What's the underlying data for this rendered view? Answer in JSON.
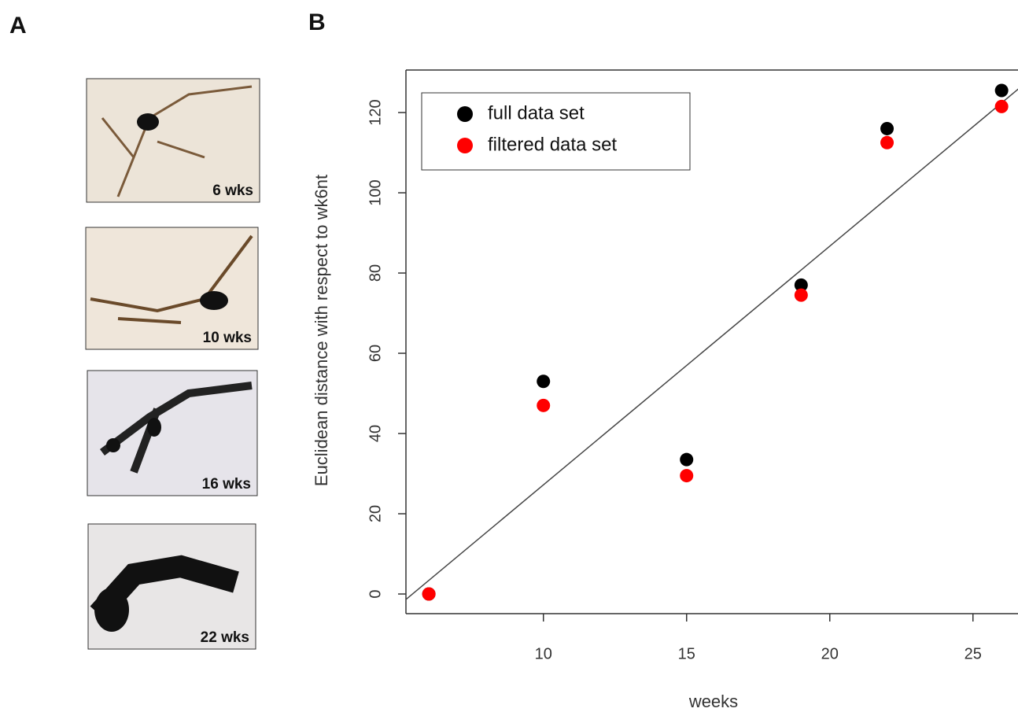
{
  "panel_labels": [
    "A",
    "B"
  ],
  "panel_a": {
    "images": [
      {
        "label": "6 wks"
      },
      {
        "label": "10 wks"
      },
      {
        "label": "16 wks"
      },
      {
        "label": "22 wks"
      }
    ]
  },
  "chart_data": {
    "type": "scatter",
    "x_label": "weeks",
    "y_label": "Euclidean distance with respect to wk6nt",
    "x": [
      6,
      10,
      15,
      19,
      22,
      26
    ],
    "series": [
      {
        "name": "full data set",
        "color": "#000000",
        "values": [
          0,
          53,
          33.5,
          77,
          116,
          125.5
        ]
      },
      {
        "name": "filtered data set",
        "color": "#ff0000",
        "values": [
          0,
          47,
          29.5,
          74.5,
          112.5,
          121.5
        ]
      }
    ],
    "fit": {
      "slope": 5.95,
      "intercept": -32.3,
      "color": "#444444"
    },
    "xlim": [
      5.2,
      26.6
    ],
    "ylim": [
      -4.9,
      130.6
    ],
    "xticks": [
      10,
      15,
      20,
      25
    ],
    "yticks": [
      0,
      20,
      40,
      60,
      80,
      100,
      120
    ],
    "legend": "top-left"
  }
}
